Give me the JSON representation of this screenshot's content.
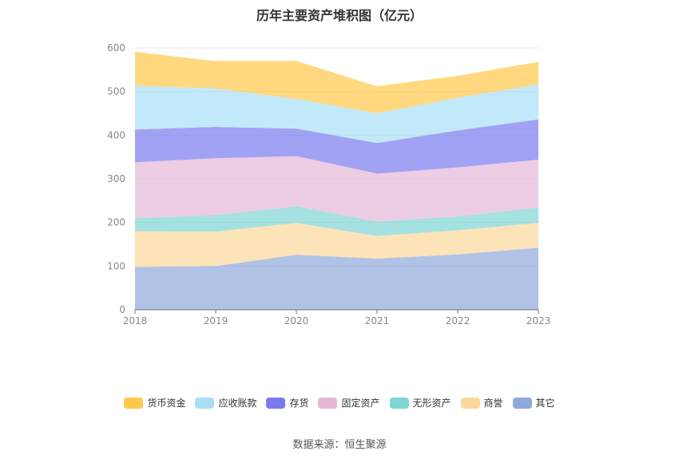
{
  "title": "历年主要资产堆积图（亿元）",
  "source": "数据来源：恒生聚源",
  "chart_data": {
    "type": "area",
    "stacked": true,
    "title": "历年主要资产堆积图（亿元）",
    "x": [
      "2018",
      "2019",
      "2020",
      "2021",
      "2022",
      "2023"
    ],
    "ylim": [
      0,
      600
    ],
    "yticks": [
      0,
      100,
      200,
      300,
      400,
      500,
      600
    ],
    "grid": true,
    "legend_position": "bottom",
    "series": [
      {
        "name": "其它",
        "color": "#8eaadb",
        "values": [
          98,
          100,
          126,
          117,
          127,
          142
        ]
      },
      {
        "name": "商誉",
        "color": "#fcd99a",
        "values": [
          82,
          79,
          73,
          52,
          55,
          57
        ]
      },
      {
        "name": "无形资产",
        "color": "#7fd4d4",
        "values": [
          30,
          38,
          38,
          33,
          32,
          35
        ]
      },
      {
        "name": "固定资产",
        "color": "#e6b8d8",
        "values": [
          128,
          130,
          115,
          110,
          112,
          110
        ]
      },
      {
        "name": "存货",
        "color": "#7b7bf0",
        "values": [
          75,
          72,
          63,
          70,
          85,
          92
        ]
      },
      {
        "name": "应收账款",
        "color": "#a8dff7",
        "values": [
          100,
          88,
          68,
          68,
          75,
          80
        ]
      },
      {
        "name": "货币资金",
        "color": "#ffc84a",
        "values": [
          78,
          63,
          87,
          62,
          50,
          52
        ]
      }
    ],
    "legend_order": [
      "货币资金",
      "应收账款",
      "存货",
      "固定资产",
      "无形资产",
      "商誉",
      "其它"
    ]
  }
}
